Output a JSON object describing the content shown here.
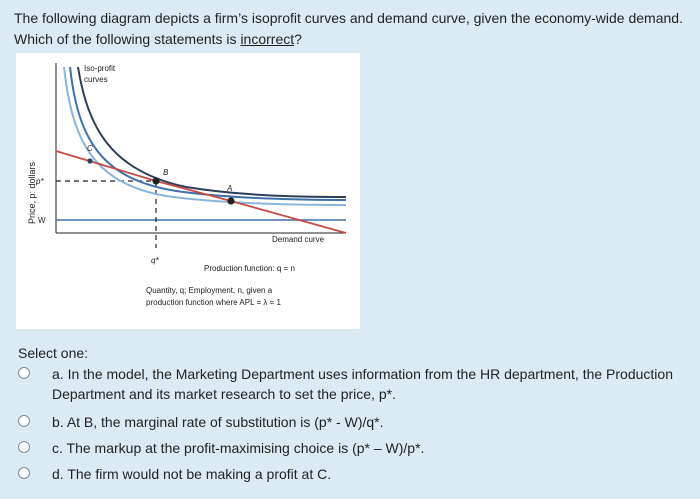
{
  "question": {
    "text_before": "The following diagram depicts a firm’s isoprofit curves and demand curve, given the economy-wide demand. Which of the following statements is ",
    "text_emph": "incorrect",
    "text_after": "?"
  },
  "figure": {
    "ylabel": "Price, p: dollars",
    "p_star_label": "p*",
    "w_label": "W",
    "q_star_label": "q*",
    "isoprofit_label_line1": "Iso-profit",
    "isoprofit_label_line2": "curves",
    "demand_label": "Demand curve",
    "production_label": "Production function: q = n",
    "xlabel_line1": "Quantity, q; Employment, n, given a",
    "xlabel_line2": "production function where APL = λ = 1",
    "point_a": "A",
    "point_b": "B",
    "point_c": "C",
    "colors": {
      "dark_curve": "#2c3e5a",
      "mid_curve": "#3f70a8",
      "light_curve": "#8ab4dc",
      "demand": "#c84a44",
      "wage_line": "#3f70a8"
    }
  },
  "select_one": "Select one:",
  "options": [
    {
      "letter": "a.",
      "text": "In the model, the Marketing Department uses information from the HR department, the Production Department and its market research to set the price, p*."
    },
    {
      "letter": "b.",
      "text": "At B, the marginal rate of substitution is (p* - W)/q*."
    },
    {
      "letter": "c.",
      "text": "The markup at the profit-maximising choice is (p* – W)/p*."
    },
    {
      "letter": "d.",
      "text": "The firm would not be making a profit at C."
    }
  ]
}
